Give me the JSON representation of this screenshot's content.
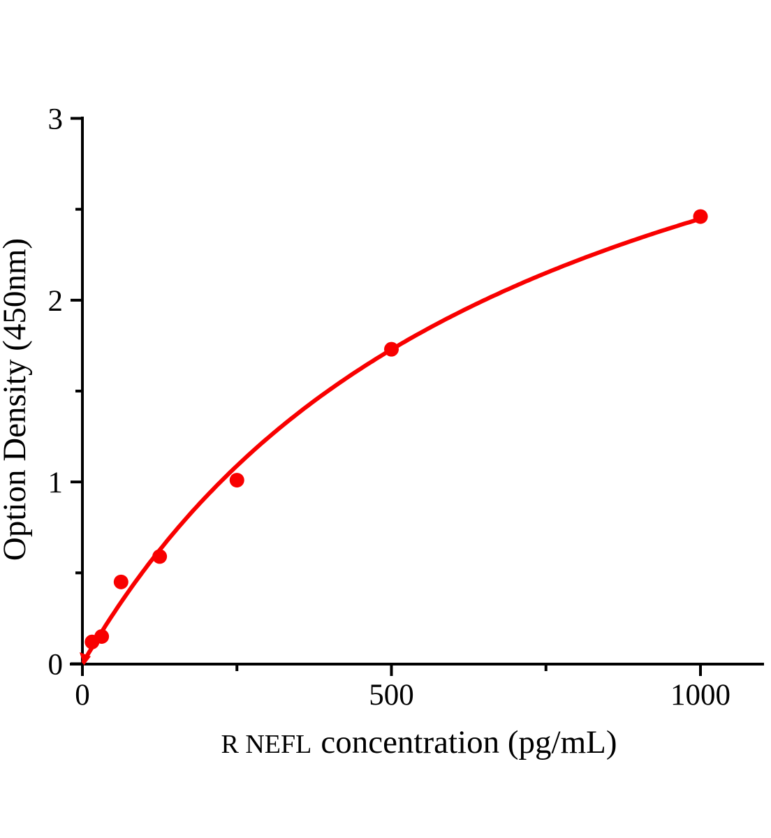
{
  "chart_data": {
    "type": "scatter",
    "title": "",
    "ylabel": "Option Density（450nm）",
    "xlabel_prefix": "R NEFL",
    "xlabel_rest": "concentration（pg/mL）",
    "xlim": [
      0,
      1000
    ],
    "ylim": [
      0,
      3
    ],
    "x_ticks": [
      0,
      500,
      1000
    ],
    "x_minor_ticks": [
      250,
      750
    ],
    "y_ticks": [
      0,
      1,
      2,
      3
    ],
    "y_minor_ticks": [
      0.5,
      1.5,
      2.5
    ],
    "grid": "off",
    "legend": "none",
    "points": [
      {
        "concentration": 15.6,
        "od": 0.12
      },
      {
        "concentration": 31.2,
        "od": 0.15
      },
      {
        "concentration": 62.5,
        "od": 0.45
      },
      {
        "concentration": 125,
        "od": 0.59
      },
      {
        "concentration": 250,
        "od": 1.01
      },
      {
        "concentration": 500,
        "od": 1.73
      },
      {
        "concentration": 1000,
        "od": 2.46
      }
    ],
    "fit_curve": {
      "model": "od = a*x/(b+x)",
      "a": 4.19,
      "b": 712
    },
    "marker_color": "#f80000",
    "curve_color": "#f80000",
    "axis_color": "#000000"
  }
}
